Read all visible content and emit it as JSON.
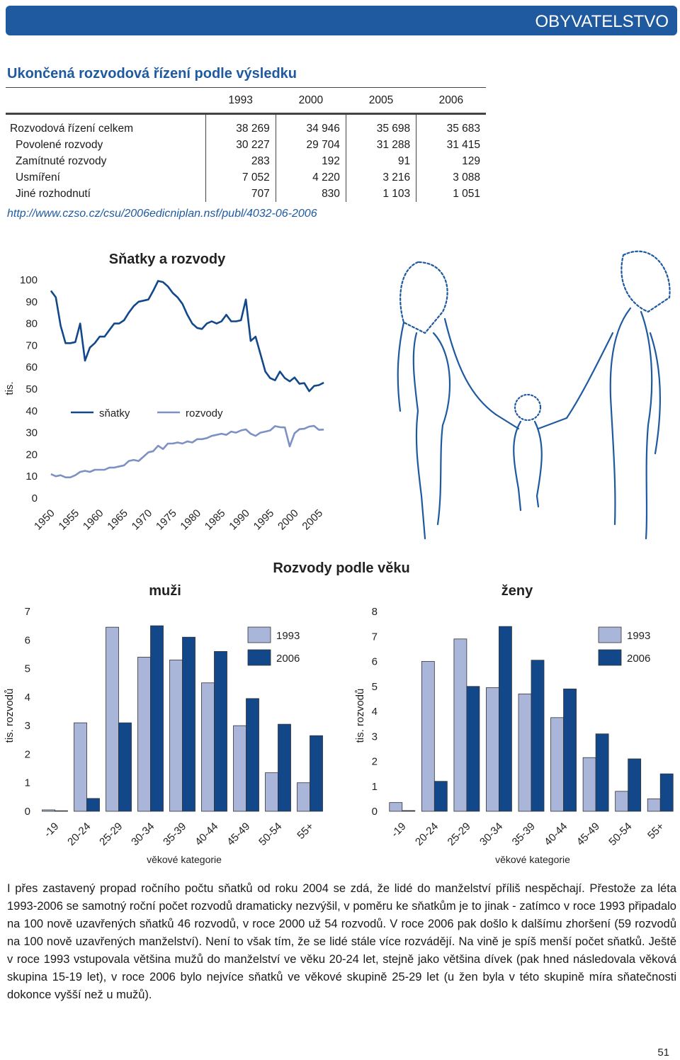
{
  "header": {
    "section": "OBYVATELSTVO"
  },
  "table": {
    "title": "Ukončená rozvodová řízení podle výsledku",
    "columns": [
      "1993",
      "2000",
      "2005",
      "2006"
    ],
    "rows": [
      [
        "Rozvodová řízení celkem",
        "38 269",
        "34 946",
        "35 698",
        "35 683"
      ],
      [
        "Povolené rozvody",
        "30 227",
        "29 704",
        "31 288",
        "31 415"
      ],
      [
        "Zamítnuté rozvody",
        "283",
        "192",
        "91",
        "129"
      ],
      [
        "Usmíření",
        "7 052",
        "4 220",
        "3 216",
        "3 088"
      ],
      [
        "Jiné rozhodnutí",
        "707",
        "830",
        "1 103",
        "1 051"
      ]
    ]
  },
  "source": "http://www.czso.cz/csu/2006edicniplan.nsf/publ/4032-06-2006",
  "charts_title": "Rozvody podle věku",
  "chart_data": [
    {
      "type": "line",
      "title": "Sňatky a rozvody",
      "y_label": "tis.",
      "x": [
        1950,
        1951,
        1952,
        1953,
        1954,
        1955,
        1956,
        1957,
        1958,
        1959,
        1960,
        1961,
        1962,
        1963,
        1964,
        1965,
        1966,
        1967,
        1968,
        1969,
        1970,
        1971,
        1972,
        1973,
        1974,
        1975,
        1976,
        1977,
        1978,
        1979,
        1980,
        1981,
        1982,
        1983,
        1984,
        1985,
        1986,
        1987,
        1988,
        1989,
        1990,
        1991,
        1992,
        1993,
        1994,
        1995,
        1996,
        1997,
        1998,
        1999,
        2000,
        2001,
        2002,
        2003,
        2004,
        2005,
        2006
      ],
      "xlim": [
        1949,
        2007
      ],
      "xticks": [
        1950,
        1955,
        1960,
        1965,
        1970,
        1975,
        1980,
        1985,
        1990,
        1995,
        2000,
        2005
      ],
      "ylim": [
        0,
        100
      ],
      "yticks": [
        0,
        10,
        20,
        30,
        40,
        50,
        60,
        70,
        80,
        90,
        100
      ],
      "legend": "center",
      "series": [
        {
          "name": "sňatky",
          "color": "#12488a",
          "values": [
            95,
            92,
            79,
            71,
            71,
            71.5,
            80,
            63,
            69,
            71,
            74,
            74,
            77,
            80,
            80,
            81.5,
            85,
            88,
            90,
            90.5,
            91,
            95,
            99.5,
            99,
            97,
            94,
            92,
            89,
            84,
            80,
            78,
            77.5,
            80,
            81,
            80,
            81,
            84,
            81,
            81,
            81.5,
            91,
            72,
            74,
            66,
            58,
            55,
            54,
            58,
            55,
            53.5,
            55.3,
            52.4,
            52.7,
            49,
            51.4,
            51.8,
            52.9
          ]
        },
        {
          "name": "rozvody",
          "color": "#7d92c2",
          "values": [
            11,
            10,
            10.5,
            9.5,
            9.5,
            10.5,
            12,
            12.5,
            12,
            13,
            13,
            13,
            14,
            14,
            14.5,
            15,
            17,
            17.5,
            17,
            19,
            21,
            21.5,
            24,
            22.5,
            25,
            25,
            25.5,
            25,
            26,
            25.5,
            27,
            27,
            27.5,
            28.5,
            29,
            29.5,
            29,
            30.5,
            30,
            31,
            31.5,
            29.5,
            28.5,
            30,
            30.5,
            31,
            33,
            32.5,
            32.4,
            23.7,
            29.7,
            31.6,
            31.8,
            32.8,
            33.1,
            31.3,
            31.4
          ]
        }
      ]
    },
    {
      "type": "bar",
      "title": "muži",
      "y_label": "tis. rozvodů",
      "x_label": "věkové kategorie",
      "categories": [
        "-19",
        "20-24",
        "25-29",
        "30-34",
        "35-39",
        "40-44",
        "45-49",
        "50-54",
        "55+"
      ],
      "ylim": [
        0,
        7
      ],
      "yticks": [
        0,
        1,
        2,
        3,
        4,
        5,
        6,
        7
      ],
      "legend": "top-right",
      "series": [
        {
          "name": "1993",
          "color": "#a9b5d9",
          "values": [
            0.05,
            3.1,
            6.45,
            5.4,
            5.3,
            4.5,
            3.0,
            1.35,
            1.0
          ]
        },
        {
          "name": "2006",
          "color": "#12488a",
          "values": [
            0.02,
            0.45,
            3.1,
            6.5,
            6.1,
            5.6,
            3.95,
            3.05,
            2.65
          ]
        }
      ]
    },
    {
      "type": "bar",
      "title": "ženy",
      "y_label": "tis. rozvodů",
      "x_label": "věkové kategorie",
      "categories": [
        "-19",
        "20-24",
        "25-29",
        "30-34",
        "35-39",
        "40-44",
        "45-49",
        "50-54",
        "55+"
      ],
      "ylim": [
        0,
        8
      ],
      "yticks": [
        0,
        1,
        2,
        3,
        4,
        5,
        6,
        7,
        8
      ],
      "legend": "top-right",
      "series": [
        {
          "name": "1993",
          "color": "#a9b5d9",
          "values": [
            0.35,
            6.0,
            6.9,
            4.95,
            4.7,
            3.75,
            2.15,
            0.8,
            0.5
          ]
        },
        {
          "name": "2006",
          "color": "#12488a",
          "values": [
            0.03,
            1.2,
            5.0,
            7.4,
            6.05,
            4.9,
            3.1,
            2.1,
            1.5
          ]
        }
      ]
    }
  ],
  "text": "I přes zastavený propad ročního počtu sňatků od roku 2004 se zdá, že lidé do manželství příliš nespěchají. Přestože za léta 1993-2006 se samotný roční počet rozvodů dramaticky nezvýšil, v poměru ke sňatkům je to jinak - zatímco v roce 1993 připadalo na 100 nově uzavřených sňatků 46 rozvodů, v roce 2000 už 54 rozvodů. V roce 2006 pak došlo k dalšímu zhoršení (59 rozvodů na 100 nově uzavřených manželství). Není to však tím, že se lidé stále více rozvádějí. Na vině je spíš menší počet sňatků. Ještě v roce 1993 vstupovala většina mužů do manželství ve věku 20-24 let, stejně jako většina dívek (pak hned následovala věková skupina 15-19 let), v roce 2006 bylo nejvíce sňatků ve věkové skupině 25-29 let (u žen byla v této skupině míra sňatečnosti dokonce vyšší než u mužů).",
  "page_number": "51"
}
